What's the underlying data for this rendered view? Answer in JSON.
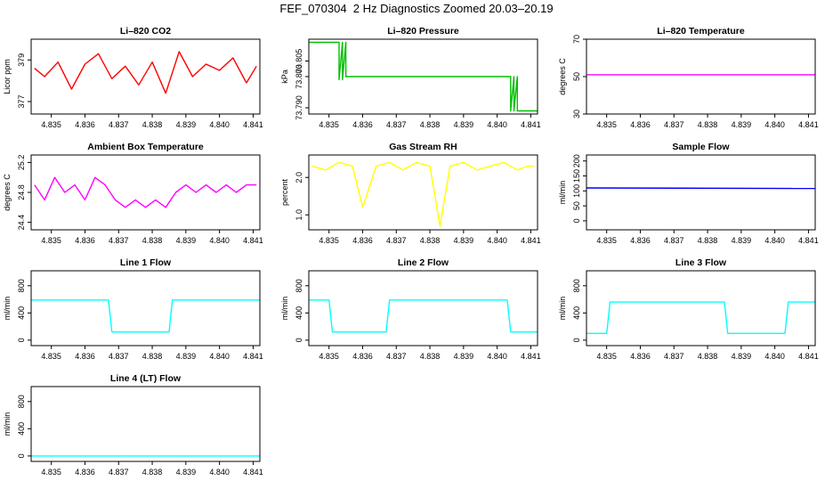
{
  "page_title": "FEF_070304  2 Hz Diagnostics Zoomed 20.03–20.19",
  "x_tick_labels": [
    "4.835",
    "4.836",
    "4.837",
    "4.838",
    "4.839",
    "4.840",
    "4.841"
  ],
  "chart_data": [
    {
      "id": "co2",
      "type": "line",
      "title": "Li–820 CO2",
      "ylabel": "Licor ppm",
      "color": "#ff0000",
      "xlim": [
        4.8344,
        4.8412
      ],
      "ylim": [
        376.4,
        380.0
      ],
      "yticks": [
        377,
        379
      ],
      "series": [
        {
          "name": "CO2",
          "x": [
            4.8345,
            4.8348,
            4.8352,
            4.8356,
            4.836,
            4.8364,
            4.8368,
            4.8372,
            4.8376,
            4.838,
            4.8384,
            4.8388,
            4.8392,
            4.8396,
            4.84,
            4.8404,
            4.8408,
            4.8411
          ],
          "y": [
            378.6,
            378.2,
            378.9,
            377.6,
            378.8,
            379.3,
            378.1,
            378.7,
            377.8,
            378.9,
            377.4,
            379.4,
            378.2,
            378.8,
            378.5,
            379.1,
            377.9,
            378.7
          ]
        }
      ]
    },
    {
      "id": "pressure",
      "type": "line",
      "title": "Li–820 Pressure",
      "ylabel": "kPa",
      "color": "#00c000",
      "xlim": [
        4.8344,
        4.8412
      ],
      "ylim": [
        73.788,
        73.812
      ],
      "yticks": [
        73.79,
        73.8,
        73.805
      ],
      "ytick_labels": [
        "73.790",
        "73.800",
        "73.805"
      ],
      "series": [
        {
          "name": "Pressure",
          "x": [
            4.8344,
            4.8353,
            4.8353,
            4.8354,
            4.8354,
            4.8355,
            4.8355,
            4.8404,
            4.8404,
            4.8405,
            4.8405,
            4.8406,
            4.8406,
            4.8412
          ],
          "y": [
            73.811,
            73.811,
            73.799,
            73.811,
            73.799,
            73.811,
            73.8,
            73.8,
            73.789,
            73.8,
            73.789,
            73.8,
            73.789,
            73.789
          ]
        }
      ]
    },
    {
      "id": "temperature",
      "type": "line",
      "title": "Li–820 Temperature",
      "ylabel": "degrees C",
      "color": "#ff00ff",
      "xlim": [
        4.8344,
        4.8412
      ],
      "ylim": [
        30,
        70
      ],
      "yticks": [
        30,
        50,
        70
      ],
      "series": [
        {
          "name": "Temperature",
          "x": [
            4.8344,
            4.8412
          ],
          "y": [
            51,
            51
          ]
        }
      ]
    },
    {
      "id": "ambient",
      "type": "line",
      "title": "Ambient Box Temperature",
      "ylabel": "degrees C",
      "color": "#ff00ff",
      "xlim": [
        4.8344,
        4.8412
      ],
      "ylim": [
        24.3,
        25.3
      ],
      "yticks": [
        24.4,
        24.8,
        25.2
      ],
      "series": [
        {
          "name": "Ambient",
          "x": [
            4.8345,
            4.8348,
            4.8351,
            4.8354,
            4.8357,
            4.836,
            4.8363,
            4.8366,
            4.8369,
            4.8372,
            4.8375,
            4.8378,
            4.8381,
            4.8384,
            4.8387,
            4.839,
            4.8393,
            4.8396,
            4.8399,
            4.8402,
            4.8405,
            4.8408,
            4.8411
          ],
          "y": [
            24.9,
            24.7,
            25.0,
            24.8,
            24.9,
            24.7,
            25.0,
            24.9,
            24.7,
            24.6,
            24.7,
            24.6,
            24.7,
            24.6,
            24.8,
            24.9,
            24.8,
            24.9,
            24.8,
            24.9,
            24.8,
            24.9,
            24.9
          ]
        }
      ]
    },
    {
      "id": "rh",
      "type": "line",
      "title": "Gas Stream RH",
      "ylabel": "percent",
      "color": "#ffff00",
      "xlim": [
        4.8344,
        4.8412
      ],
      "ylim": [
        0.6,
        2.6
      ],
      "yticks": [
        1.0,
        2.0
      ],
      "ytick_labels": [
        "1.0",
        "2.0"
      ],
      "series": [
        {
          "name": "RH",
          "x": [
            4.8345,
            4.8349,
            4.8353,
            4.8357,
            4.836,
            4.8364,
            4.8368,
            4.8372,
            4.8376,
            4.838,
            4.8383,
            4.8386,
            4.839,
            4.8394,
            4.8398,
            4.8402,
            4.8406,
            4.8409,
            4.8411
          ],
          "y": [
            2.3,
            2.2,
            2.4,
            2.3,
            1.2,
            2.3,
            2.4,
            2.2,
            2.4,
            2.3,
            0.7,
            2.3,
            2.4,
            2.2,
            2.3,
            2.4,
            2.2,
            2.3,
            2.3
          ]
        }
      ]
    },
    {
      "id": "sample",
      "type": "line",
      "title": "Sample Flow",
      "ylabel": "ml/min",
      "color": "#0000ff",
      "xlim": [
        4.8344,
        4.8412
      ],
      "ylim": [
        -30,
        220
      ],
      "yticks": [
        0,
        50,
        100,
        150,
        200
      ],
      "series": [
        {
          "name": "Sample",
          "x": [
            4.8344,
            4.8412
          ],
          "y": [
            110,
            108
          ]
        }
      ]
    },
    {
      "id": "line1",
      "type": "line",
      "title": "Line 1 Flow",
      "ylabel": "ml/min",
      "color": "#00ffff",
      "xlim": [
        4.8344,
        4.8412
      ],
      "ylim": [
        -80,
        1020
      ],
      "yticks": [
        0,
        400,
        800
      ],
      "series": [
        {
          "name": "Line 1",
          "x": [
            4.8344,
            4.8367,
            4.8368,
            4.8385,
            4.8386,
            4.8412
          ],
          "y": [
            590,
            590,
            120,
            120,
            590,
            590
          ]
        }
      ]
    },
    {
      "id": "line2",
      "type": "line",
      "title": "Line 2 Flow",
      "ylabel": "ml/min",
      "color": "#00ffff",
      "xlim": [
        4.8344,
        4.8412
      ],
      "ylim": [
        -80,
        1020
      ],
      "yticks": [
        0,
        400,
        800
      ],
      "series": [
        {
          "name": "Line 2",
          "x": [
            4.8344,
            4.835,
            4.8351,
            4.8367,
            4.8368,
            4.8403,
            4.8404,
            4.8412
          ],
          "y": [
            590,
            590,
            120,
            120,
            590,
            590,
            120,
            120
          ]
        }
      ]
    },
    {
      "id": "line3",
      "type": "line",
      "title": "Line 3 Flow",
      "ylabel": "ml/min",
      "color": "#00ffff",
      "xlim": [
        4.8344,
        4.8412
      ],
      "ylim": [
        -80,
        1020
      ],
      "yticks": [
        0,
        400,
        800
      ],
      "series": [
        {
          "name": "Line 3",
          "x": [
            4.8344,
            4.835,
            4.8351,
            4.8385,
            4.8386,
            4.8403,
            4.8404,
            4.8412
          ],
          "y": [
            100,
            100,
            560,
            560,
            100,
            100,
            560,
            560
          ]
        }
      ]
    },
    {
      "id": "line4",
      "type": "line",
      "title": "Line 4 (LT) Flow",
      "ylabel": "ml/min",
      "color": "#00ffff",
      "xlim": [
        4.8344,
        4.8412
      ],
      "ylim": [
        -80,
        1020
      ],
      "yticks": [
        0,
        400,
        800
      ],
      "series": [
        {
          "name": "Line 4",
          "x": [
            4.8344,
            4.8412
          ],
          "y": [
            0,
            0
          ]
        }
      ]
    }
  ]
}
